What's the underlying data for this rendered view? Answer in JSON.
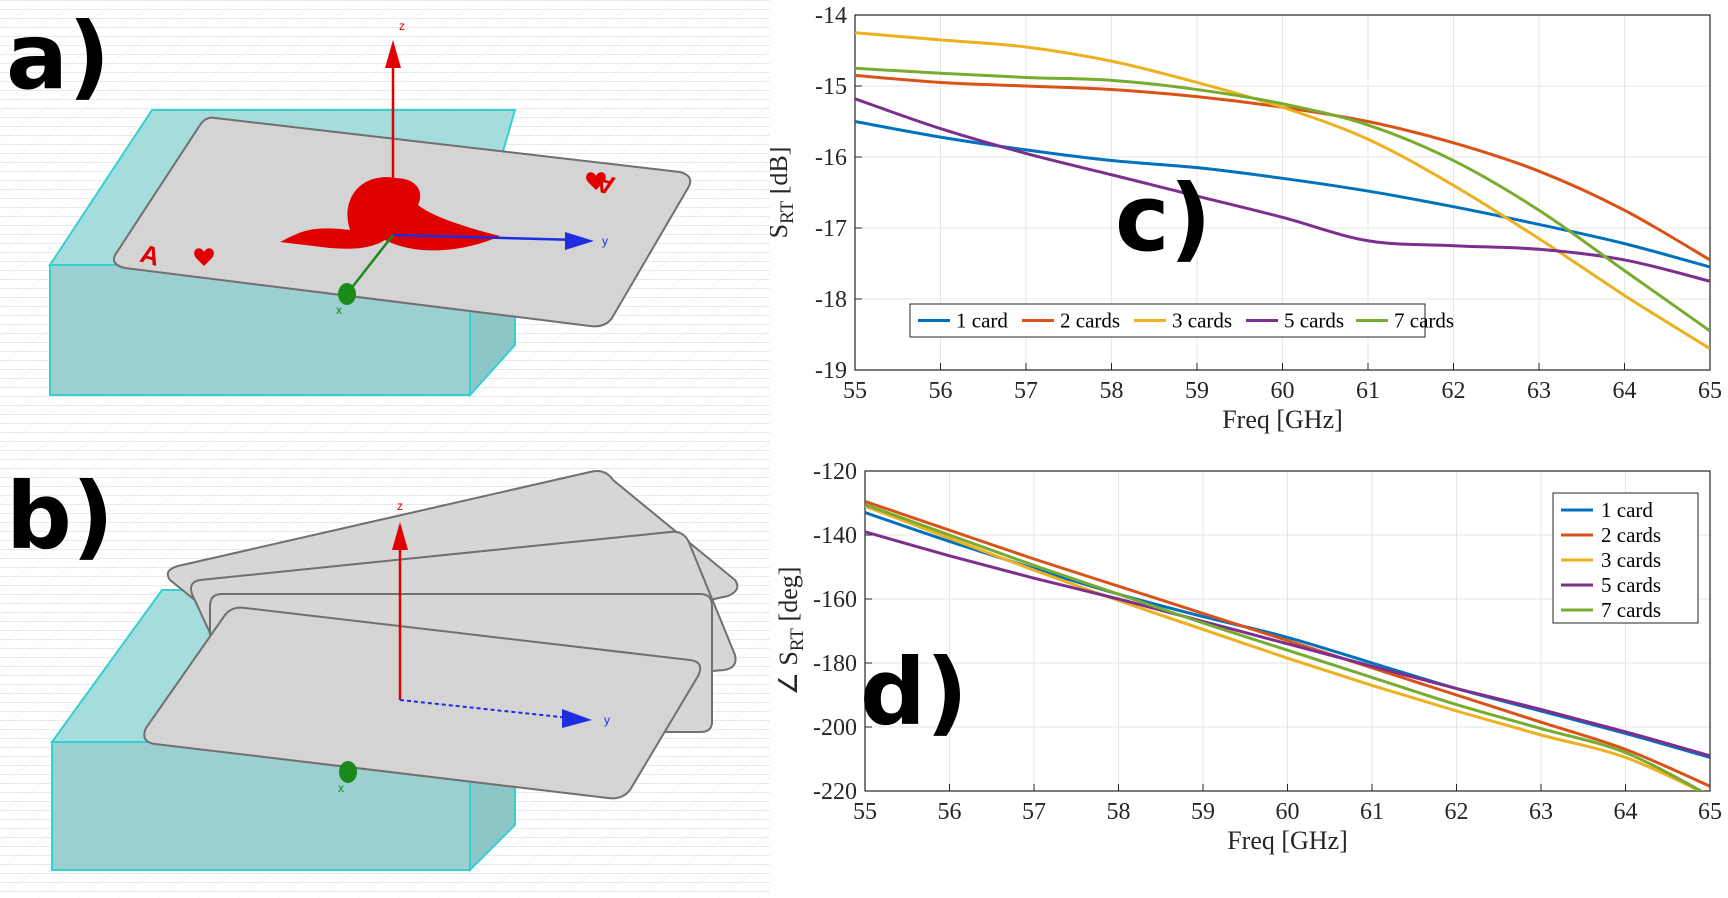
{
  "panels": {
    "a": "a)",
    "b": "b)",
    "c": "c)",
    "d": "d)"
  },
  "left_scene": {
    "axis_labels": {
      "z": "z",
      "y": "y",
      "x": "x"
    },
    "card_index_mark": "A",
    "colors": {
      "substrate": "#9fd8d8",
      "substrate_edge": "#35d0d0",
      "card": "#d4d4d4",
      "spade": "#e00000",
      "z_axis": "#e00000",
      "y_axis": "#1f2de0",
      "x_axis": "#1a8a1a"
    }
  },
  "chart_data": [
    {
      "type": "line",
      "panel": "c",
      "xlabel": "Freq [GHz]",
      "ylabel": "S",
      "ylabel_sub": "RT",
      "ylabel_unit": " [dB]",
      "xlim": [
        55,
        65
      ],
      "ylim": [
        -19,
        -14
      ],
      "xticks": [
        55,
        56,
        57,
        58,
        59,
        60,
        61,
        62,
        63,
        64,
        65
      ],
      "yticks": [
        -14,
        -15,
        -16,
        -17,
        -18,
        -19
      ],
      "grid": true,
      "legend_placement": "bottom-left horizontal",
      "series": [
        {
          "name": "1 card",
          "color": "#0072bd",
          "x": [
            55,
            56,
            57,
            58,
            59,
            60,
            61,
            62,
            63,
            64,
            65
          ],
          "y": [
            -15.5,
            -15.72,
            -15.9,
            -16.05,
            -16.15,
            -16.3,
            -16.48,
            -16.7,
            -16.95,
            -17.22,
            -17.55
          ]
        },
        {
          "name": "2 cards",
          "color": "#d95319",
          "x": [
            55,
            56,
            57,
            58,
            59,
            60,
            61,
            62,
            63,
            64,
            65
          ],
          "y": [
            -14.85,
            -14.95,
            -15.0,
            -15.05,
            -15.15,
            -15.3,
            -15.5,
            -15.8,
            -16.2,
            -16.75,
            -17.45
          ]
        },
        {
          "name": "3 cards",
          "color": "#edb120",
          "x": [
            55,
            56,
            57,
            58,
            59,
            60,
            61,
            62,
            63,
            64,
            65
          ],
          "y": [
            -14.25,
            -14.35,
            -14.45,
            -14.65,
            -14.95,
            -15.3,
            -15.75,
            -16.4,
            -17.15,
            -17.95,
            -18.7
          ]
        },
        {
          "name": "5 cards",
          "color": "#7e2f8e",
          "x": [
            55,
            56,
            57,
            58,
            59,
            60,
            61,
            62,
            63,
            64,
            65
          ],
          "y": [
            -15.18,
            -15.6,
            -15.95,
            -16.25,
            -16.55,
            -16.85,
            -17.18,
            -17.25,
            -17.3,
            -17.45,
            -17.75
          ]
        },
        {
          "name": "7 cards",
          "color": "#77ac30",
          "x": [
            55,
            56,
            57,
            58,
            59,
            60,
            61,
            62,
            63,
            64,
            65
          ],
          "y": [
            -14.75,
            -14.82,
            -14.88,
            -14.92,
            -15.05,
            -15.25,
            -15.55,
            -16.05,
            -16.75,
            -17.6,
            -18.45
          ]
        }
      ]
    },
    {
      "type": "line",
      "panel": "d",
      "xlabel": "Freq [GHz]",
      "ylabel": "∠ S",
      "ylabel_sub": "RT",
      "ylabel_unit": " [deg]",
      "xlim": [
        55,
        65
      ],
      "ylim": [
        -220,
        -120
      ],
      "xticks": [
        55,
        56,
        57,
        58,
        59,
        60,
        61,
        62,
        63,
        64,
        65
      ],
      "yticks": [
        -120,
        -140,
        -160,
        -180,
        -200,
        -220
      ],
      "grid": true,
      "legend_placement": "top-right vertical",
      "series": [
        {
          "name": "1 card",
          "color": "#0072bd",
          "x": [
            55,
            56,
            57,
            58,
            59,
            60,
            61,
            62,
            63,
            64,
            65
          ],
          "y": [
            -133,
            -142,
            -150.5,
            -158.5,
            -165.5,
            -172,
            -180,
            -188,
            -195,
            -202,
            -209.5
          ]
        },
        {
          "name": "2 cards",
          "color": "#d95319",
          "x": [
            55,
            56,
            57,
            58,
            59,
            60,
            61,
            62,
            63,
            64,
            65
          ],
          "y": [
            -129.5,
            -138.5,
            -147.5,
            -156,
            -164.5,
            -173,
            -181.5,
            -190,
            -198.5,
            -207,
            -218.5
          ]
        },
        {
          "name": "3 cards",
          "color": "#edb120",
          "x": [
            55,
            56,
            57,
            58,
            59,
            60,
            61,
            62,
            63,
            64,
            65
          ],
          "y": [
            -131,
            -141,
            -151,
            -160.5,
            -169.5,
            -178.5,
            -187,
            -195,
            -202.5,
            -209.5,
            -221.5
          ]
        },
        {
          "name": "5 cards",
          "color": "#7e2f8e",
          "x": [
            55,
            56,
            57,
            58,
            59,
            60,
            61,
            62,
            63,
            64,
            65
          ],
          "y": [
            -139,
            -146.5,
            -153.5,
            -160,
            -167,
            -174,
            -181,
            -188,
            -194.5,
            -201.5,
            -209
          ]
        },
        {
          "name": "7 cards",
          "color": "#77ac30",
          "x": [
            55,
            56,
            57,
            58,
            59,
            60,
            61,
            62,
            63,
            64,
            65
          ],
          "y": [
            -130.5,
            -140,
            -149.5,
            -158.5,
            -167.5,
            -176,
            -184.5,
            -193,
            -200.5,
            -208,
            -221.5
          ]
        }
      ]
    }
  ]
}
